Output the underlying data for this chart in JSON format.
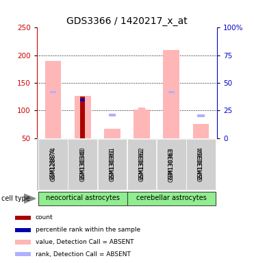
{
  "title": "GDS3366 / 1420217_x_at",
  "samples": [
    "GSM128874",
    "GSM130340",
    "GSM130361",
    "GSM130362",
    "GSM130363",
    "GSM130364"
  ],
  "group_defs": [
    {
      "label": "neocortical astrocytes",
      "start": 0,
      "end": 2
    },
    {
      "label": "cerebellar astrocytes",
      "start": 3,
      "end": 5
    }
  ],
  "group_color": "#90ee90",
  "ylim_left": [
    50,
    250
  ],
  "ylim_right": [
    0,
    100
  ],
  "yticks_left": [
    50,
    100,
    150,
    200,
    250
  ],
  "yticks_right": [
    0,
    25,
    50,
    75,
    100
  ],
  "ytick_right_labels": [
    "0",
    "25",
    "50",
    "75",
    "100%"
  ],
  "left_tick_color": "#cc0000",
  "right_tick_color": "#0000cc",
  "grid_lines": [
    100,
    150,
    200
  ],
  "value_bars_color": "#ffb6b6",
  "value_bars_data": [
    190,
    127,
    67,
    101,
    210,
    76
  ],
  "rank_sq_color": "#b0b0ff",
  "rank_sq_data": [
    null,
    null,
    91,
    null,
    null,
    90
  ],
  "count_bar_color": "#aa0000",
  "count_bar_data": [
    null,
    125,
    null,
    null,
    null,
    null
  ],
  "pct_bar_color": "#0000aa",
  "pct_bar_data": [
    null,
    117,
    null,
    null,
    null,
    null
  ],
  "pink_marker_color": "#ffb6b6",
  "pink_marker_data": [
    132,
    null,
    null,
    103,
    131,
    null
  ],
  "blue_marker_color": "#b0b0ff",
  "blue_marker_data": [
    133,
    null,
    null,
    null,
    133,
    null
  ],
  "legend_items": [
    {
      "color": "#aa0000",
      "label": "count"
    },
    {
      "color": "#0000aa",
      "label": "percentile rank within the sample"
    },
    {
      "color": "#ffb6b6",
      "label": "value, Detection Call = ABSENT"
    },
    {
      "color": "#b0b0ff",
      "label": "rank, Detection Call = ABSENT"
    }
  ],
  "bg_color": "#ffffff",
  "sample_box_color": "#d0d0d0",
  "sample_box_border": "#aaaaaa",
  "title_fontsize": 10,
  "tick_fontsize": 7.5,
  "sample_fontsize": 6,
  "group_fontsize": 7,
  "legend_fontsize": 6.5,
  "celltype_fontsize": 7
}
